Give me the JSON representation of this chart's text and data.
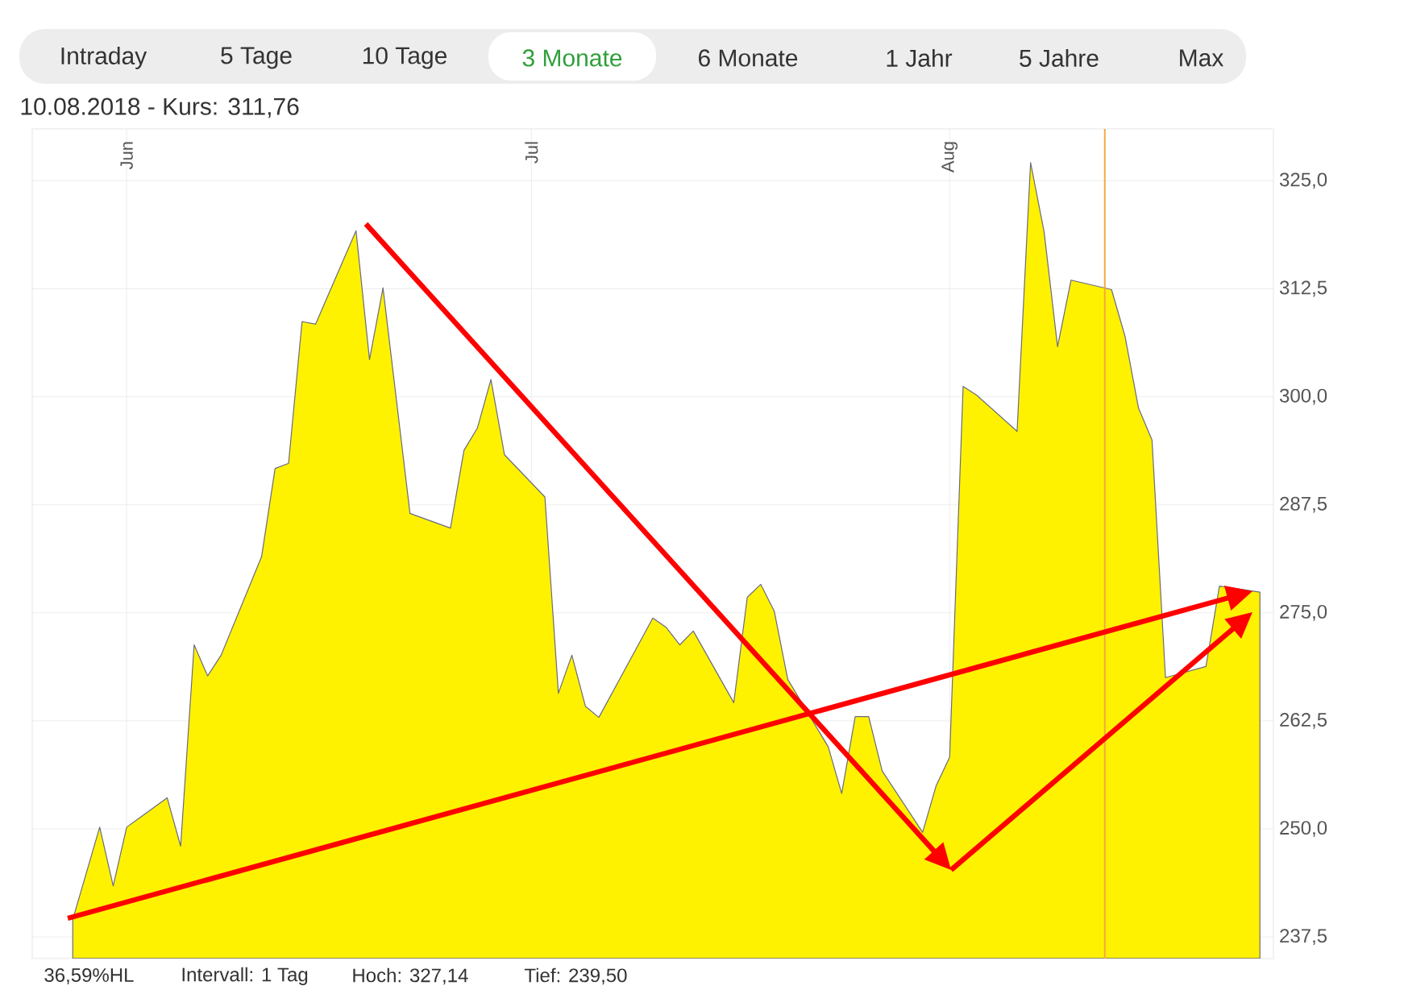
{
  "chart_data": {
    "type": "area",
    "title": "10.08.2018  -  Kurs: 311,76",
    "annotations": [
      "Intraday",
      "5 Tage",
      "10 Tage",
      "3 Monate",
      "6 Monate",
      "1 Jahr",
      "5 Jahre",
      "Max",
      "36,59%HL",
      "Intervall: 1 Tag",
      "Hoch:  327,14",
      "Tief:  239,50"
    ],
    "xlim": [
      "2018-05-25",
      "2018-08-25"
    ],
    "xticks": [
      {
        "value": "2018-06-01",
        "label": "Jun"
      },
      {
        "value": "2018-07-01",
        "label": "Jul"
      },
      {
        "value": "2018-08-01",
        "label": "Aug"
      }
    ],
    "ylim": [
      235,
      331
    ],
    "yticks": [
      {
        "value": 237.5,
        "label": "237,5"
      },
      {
        "value": 250,
        "label": "250,0"
      },
      {
        "value": 262.5,
        "label": "262,5"
      },
      {
        "value": 275,
        "label": "275,0"
      },
      {
        "value": 287.5,
        "label": "287,5"
      },
      {
        "value": 300,
        "label": "300,0"
      },
      {
        "value": 312.5,
        "label": "312,5"
      },
      {
        "value": 325,
        "label": "325,0"
      }
    ],
    "grid": true,
    "ref_lines": [
      {
        "axis": "x",
        "value": "2018-08-12T12:00",
        "color": "#f5a742"
      }
    ],
    "series": [
      {
        "color": "#fff200",
        "x": [
          "2018-05-28",
          "2018-05-30",
          "2018-05-31",
          "2018-06-01",
          "2018-06-04",
          "2018-06-05",
          "2018-06-06",
          "2018-06-07",
          "2018-06-08",
          "2018-06-11",
          "2018-06-12",
          "2018-06-13",
          "2018-06-14",
          "2018-06-15",
          "2018-06-18",
          "2018-06-19",
          "2018-06-20",
          "2018-06-22",
          "2018-06-25",
          "2018-06-26",
          "2018-06-27",
          "2018-06-28",
          "2018-06-29",
          "2018-07-02",
          "2018-07-03",
          "2018-07-04",
          "2018-07-05",
          "2018-07-06",
          "2018-07-10",
          "2018-07-11",
          "2018-07-12",
          "2018-07-13",
          "2018-07-16",
          "2018-07-17",
          "2018-07-18",
          "2018-07-19",
          "2018-07-20",
          "2018-07-23",
          "2018-07-24",
          "2018-07-25",
          "2018-07-26",
          "2018-07-27",
          "2018-07-30",
          "2018-07-31",
          "2018-08-01",
          "2018-08-02",
          "2018-08-03",
          "2018-08-06",
          "2018-08-07",
          "2018-08-08",
          "2018-08-09",
          "2018-08-10",
          "2018-08-13",
          "2018-08-14",
          "2018-08-15",
          "2018-08-16",
          "2018-08-17",
          "2018-08-20",
          "2018-08-21",
          "2018-08-24"
        ],
        "values": [
          239.5,
          250.2,
          243.4,
          250.2,
          253.6,
          248.0,
          271.3,
          267.7,
          270.1,
          281.5,
          291.7,
          292.3,
          308.7,
          308.4,
          319.2,
          304.3,
          312.6,
          286.5,
          284.8,
          293.8,
          296.4,
          302.0,
          293.3,
          288.4,
          265.7,
          270.1,
          264.2,
          262.9,
          274.4,
          273.3,
          271.3,
          272.9,
          264.6,
          276.8,
          278.3,
          275.2,
          267.3,
          259.5,
          254.1,
          263.0,
          263.0,
          256.7,
          249.6,
          255.0,
          258.3,
          301.2,
          300.2,
          296.0,
          327.1,
          319.1,
          305.8,
          313.5,
          312.4,
          307.0,
          298.7,
          295.0,
          267.5,
          268.8,
          278.1,
          277.4
        ]
      }
    ]
  }
}
